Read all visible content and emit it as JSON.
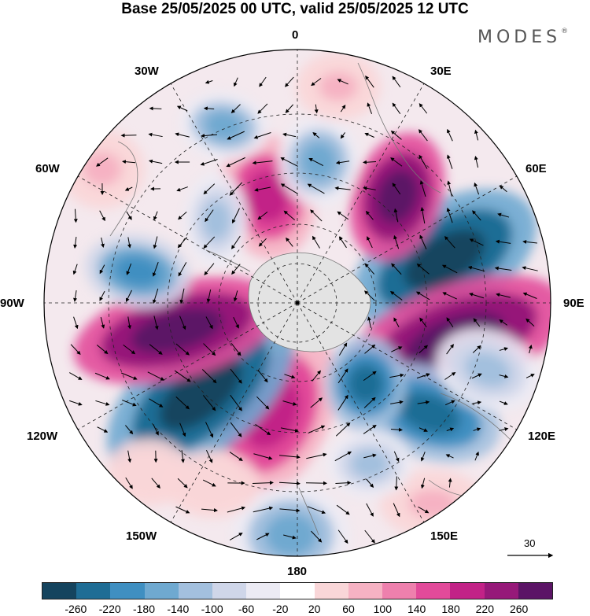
{
  "title": "Base 25/05/2025 00 UTC, valid 25/05/2025 12 UTC",
  "brand": "MODES",
  "brand_mark": "®",
  "longitude_labels": [
    "0",
    "30E",
    "60E",
    "90E",
    "120E",
    "150E",
    "180",
    "150W",
    "120W",
    "90W",
    "60W",
    "30W"
  ],
  "reference_vector": {
    "label": "30"
  },
  "colorbar": {
    "colors": [
      "#15445e",
      "#1f6d95",
      "#3f8fc1",
      "#6fa9d0",
      "#a3c0de",
      "#cfd6e9",
      "#ecebf4",
      "#ffffff",
      "#f9d6d8",
      "#f6b2c3",
      "#ee80ad",
      "#e24a9a",
      "#c22287",
      "#961979",
      "#5b1466"
    ],
    "tick_labels": [
      "-260",
      "-220",
      "-180",
      "-140",
      "-100",
      "-60",
      "-20",
      "20",
      "60",
      "100",
      "140",
      "180",
      "220",
      "260"
    ]
  },
  "map": {
    "projection": "south polar stereographic",
    "graticule": "dashed",
    "anomaly_centers": [
      {
        "sign": "negative",
        "level": "-260",
        "near": "60E-80E"
      },
      {
        "sign": "positive",
        "level": "260",
        "near": "90E-110E"
      },
      {
        "sign": "positive",
        "level": "260",
        "near": "40E"
      },
      {
        "sign": "negative",
        "level": "-220",
        "near": "120E-140E"
      },
      {
        "sign": "positive",
        "level": "220",
        "near": "160W"
      },
      {
        "sign": "negative",
        "level": "-260",
        "near": "110W-130W"
      },
      {
        "sign": "positive",
        "level": "260",
        "near": "90W-100W"
      },
      {
        "sign": "negative",
        "level": "-180",
        "near": "70W-80W"
      },
      {
        "sign": "positive",
        "level": "220",
        "near": "20W"
      },
      {
        "sign": "negative",
        "level": "-140",
        "near": "10E"
      },
      {
        "sign": "negative",
        "level": "-140",
        "near": "30W"
      },
      {
        "sign": "negative",
        "level": "-140",
        "near": "180"
      }
    ]
  }
}
